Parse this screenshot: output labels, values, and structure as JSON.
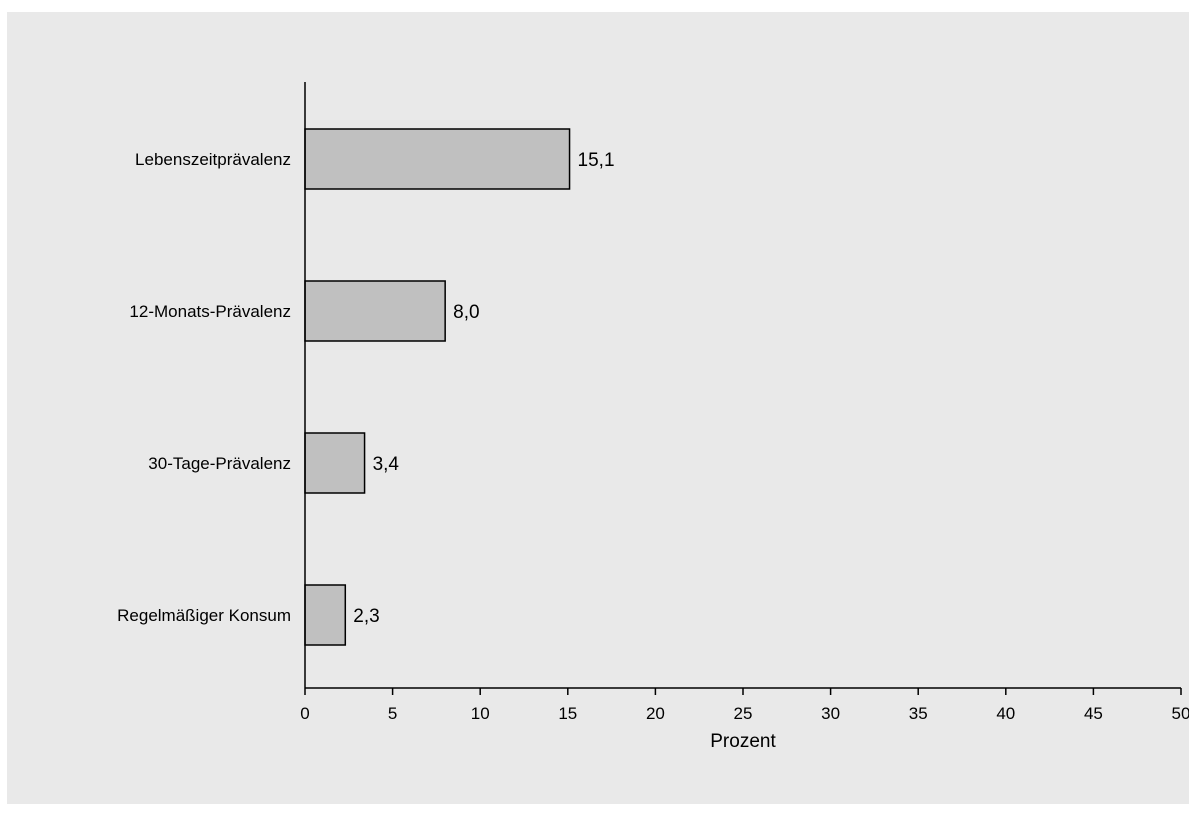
{
  "chart_data": {
    "type": "bar",
    "orientation": "horizontal",
    "categories": [
      "Lebenszeitprävalenz",
      "12-Monats-Prävalenz",
      "30-Tage-Prävalenz",
      "Regelmäßiger Konsum"
    ],
    "values": [
      15.1,
      8.0,
      3.4,
      2.3
    ],
    "data_labels": [
      "15,1",
      "8,0",
      "3,4",
      "2,3"
    ],
    "title": "",
    "xlabel": "Prozent",
    "ylabel": "",
    "xlim": [
      0,
      50
    ],
    "x_ticks": [
      0,
      5,
      10,
      15,
      20,
      25,
      30,
      35,
      40,
      45,
      50
    ],
    "x_tick_labels": [
      "0",
      "5",
      "10",
      "15",
      "20",
      "25",
      "30",
      "35",
      "40",
      "45",
      "50"
    ],
    "grid": false,
    "legend": "none",
    "colors": {
      "background": "#e9e9e9",
      "bar_fill": "#c0c0c0",
      "bar_stroke": "#000000",
      "axis": "#000000"
    }
  }
}
